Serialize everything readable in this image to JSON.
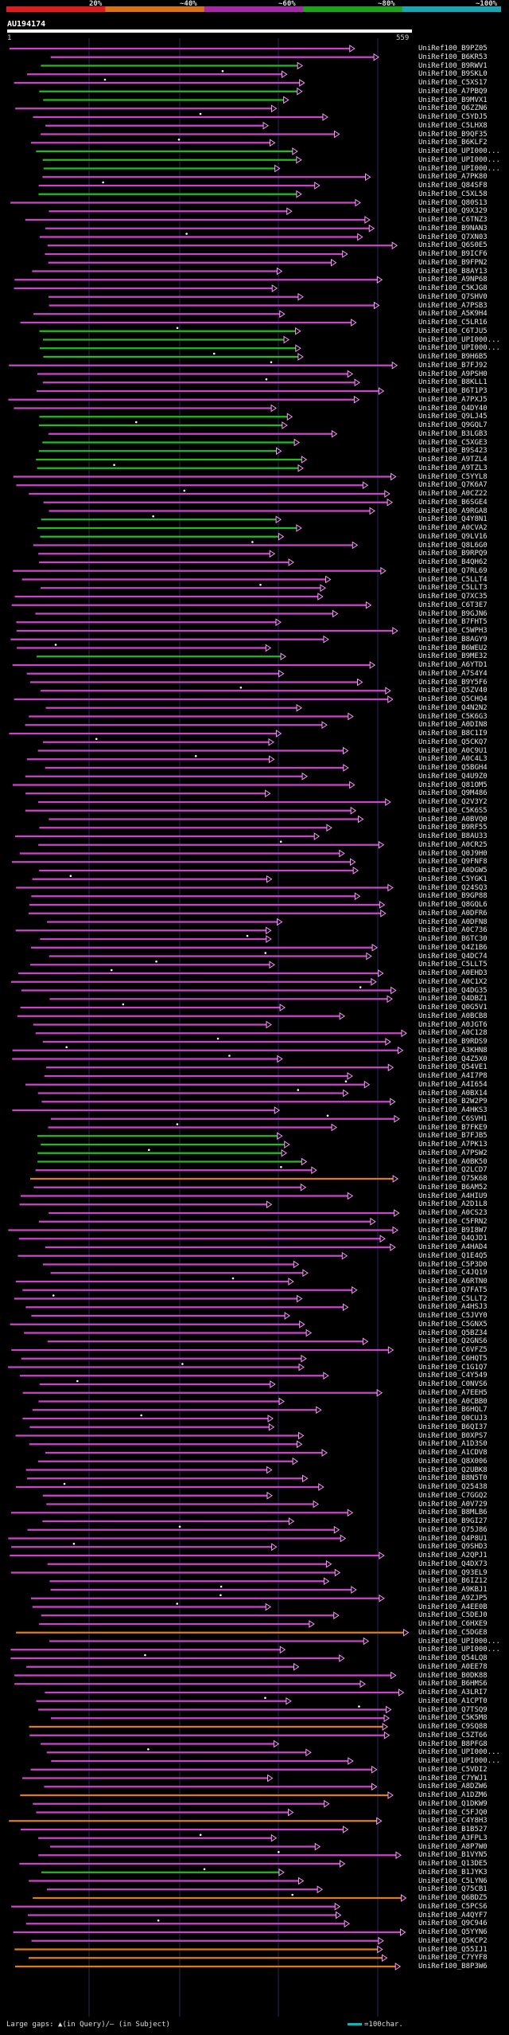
{
  "scale": {
    "labels": [
      "20%",
      "~40%",
      "~60%",
      "~80%",
      "~100%"
    ],
    "colors": [
      "#e01d1d",
      "#d9711a",
      "#a629a6",
      "#1ea31e",
      "#1ba5b3"
    ]
  },
  "query": {
    "id": "AU194174",
    "start": "1",
    "end": "559"
  },
  "colors": {
    "magenta": "#cc44cc",
    "green": "#22bb22",
    "orange": "#e07b1a",
    "arrow": "#ff99ff",
    "grid": "#27275a"
  },
  "hits": [
    "UniRef100_B9PZ05",
    "UniRef100_B6KR53",
    "UniRef100_B9RWV1",
    "UniRef100_B9SKL0",
    "UniRef100_C5XS17",
    "UniRef100_A7PBQ9",
    "UniRef100_B9MVX1",
    "UniRef100_Q6ZZN6",
    "UniRef100_C5YDJ5",
    "UniRef100_C5LHX8",
    "UniRef100_B9QF35",
    "UniRef100_B6KLF2",
    "UniRef100_UPI000...",
    "UniRef100_UPI000...",
    "UniRef100_UPI000...",
    "UniRef100_A7PK80",
    "UniRef100_Q84SF8",
    "UniRef100_C5XL58",
    "UniRef100_Q80S13",
    "UniRef100_Q9X329",
    "UniRef100_C6TNZ3",
    "UniRef100_B9NAN3",
    "UniRef100_Q7XN03",
    "UniRef100_Q6S0E5",
    "UniRef100_B9ICF6",
    "UniRef100_B9FPN2",
    "UniRef100_B8AY13",
    "UniRef100_A9NP68",
    "UniRef100_C5KJG8",
    "UniRef100_Q7SHV0",
    "UniRef100_A7PSB3",
    "UniRef100_A5K9H4",
    "UniRef100_C5LR16",
    "UniRef100_C6TJU5",
    "UniRef100_UPI000...",
    "UniRef100_UPI000...",
    "UniRef100_B9H6B5",
    "UniRef100_B7FJ92",
    "UniRef100_A9PSH0",
    "UniRef100_B8KLL1",
    "UniRef100_B6T1P3",
    "UniRef100_A7PXJ5",
    "UniRef100_Q4DY40",
    "UniRef100_Q9LJ45",
    "UniRef100_Q9GQL7",
    "UniRef100_B3LGB3",
    "UniRef100_C5XGE3",
    "UniRef100_B9S423",
    "UniRef100_A9TZL4",
    "UniRef100_A9TZL3",
    "UniRef100_C5YYL8",
    "UniRef100_Q7K6A7",
    "UniRef100_A0CZ22",
    "UniRef100_B6SGE4",
    "UniRef100_A9RGA8",
    "UniRef100_Q4Y8N1",
    "UniRef100_A0CVA2",
    "UniRef100_Q9LV16",
    "UniRef100_Q8L6G0",
    "UniRef100_B9RPQ9",
    "UniRef100_B4QH62",
    "UniRef100_Q7RL69",
    "UniRef100_C5LLT4",
    "UniRef100_C5LLT3",
    "UniRef100_Q7XC35",
    "UniRef100_C6T3E7",
    "UniRef100_B9GJN6",
    "UniRef100_B7FHT5",
    "UniRef100_C5WPH3",
    "UniRef100_B8AGY9",
    "UniRef100_B6WEU2",
    "UniRef100_B9ME32",
    "UniRef100_A6YTD1",
    "UniRef100_A7S4Y4",
    "UniRef100_B9Y5F6",
    "UniRef100_Q5ZV40",
    "UniRef100_Q5CHQ4",
    "UniRef100_Q4N2N2",
    "UniRef100_C5K6G3",
    "UniRef100_A0DIN8",
    "UniRef100_B8C1I9",
    "UniRef100_Q5CKQ7",
    "UniRef100_A0C9U1",
    "UniRef100_A0C4L3",
    "UniRef100_Q5BGH4",
    "UniRef100_Q4U9Z0",
    "UniRef100_Q81OM5",
    "UniRef100_Q9M486",
    "UniRef100_Q2V3Y2",
    "UniRef100_C5K6S5",
    "UniRef100_A0BVQ0",
    "UniRef100_B9RF55",
    "UniRef100_B8AU33",
    "UniRef100_A0CR25",
    "UniRef100_Q0J9H0",
    "UniRef100_Q9FNF8",
    "UniRef100_A0DGW5",
    "UniRef100_C5YGK1",
    "UniRef100_Q24SQ3",
    "UniRef100_B9GP88",
    "UniRef100_Q8GQL6",
    "UniRef100_A0DFR6",
    "UniRef100_A0DFN8",
    "UniRef100_A0C736",
    "UniRef100_B6TC30",
    "UniRef100_Q4Z1B6",
    "UniRef100_Q4DC74",
    "UniRef100_C5LLT5",
    "UniRef100_A0EHD3",
    "UniRef100_A0C1X2",
    "UniRef100_Q4DG35",
    "UniRef100_Q4DBZ1",
    "UniRef100_Q0G5V1",
    "UniRef100_A0BCB8",
    "UniRef100_A0JGT6",
    "UniRef100_A0C128",
    "UniRef100_B9RDS9",
    "UniRef100_A3KHN8",
    "UniRef100_Q4Z5X0",
    "UniRef100_Q54VE1",
    "UniRef100_A4I7P8",
    "UniRef100_A4I654",
    "UniRef100_A0BX14",
    "UniRef100_B2W2P9",
    "UniRef100_A4HKS3",
    "UniRef100_C6SVH1",
    "UniRef100_B7FKE9",
    "UniRef100_B7FJB5",
    "UniRef100_A7PK13",
    "UniRef100_A7PSW2",
    "UniRef100_A0BK50",
    "UniRef100_Q2LCD7",
    "UniRef100_Q75K68",
    "UniRef100_B6AM52",
    "UniRef100_A4HIU9",
    "UniRef100_A2D1L8",
    "UniRef100_A0CS23",
    "UniRef100_C5FRN2",
    "UniRef100_B9I8W7",
    "UniRef100_Q4QJD1",
    "UniRef100_A4HAD4",
    "UniRef100_Q1E4Q5",
    "UniRef100_C5P3D0",
    "UniRef100_C4JQ19",
    "UniRef100_A6RTN0",
    "UniRef100_Q7FAT5",
    "UniRef100_C5LLT2",
    "UniRef100_A4HSJ3",
    "UniRef100_C5JVY0",
    "UniRef100_C5GNX5",
    "UniRef100_Q5BZ34",
    "UniRef100_Q2GNS6",
    "UniRef100_C6VFZ5",
    "UniRef100_C6HQT5",
    "UniRef100_C1G1Q7",
    "UniRef100_C4Y549",
    "UniRef100_C0NVS6",
    "UniRef100_A7EEH5",
    "UniRef100_A0CBB0",
    "UniRef100_B6HQL7",
    "UniRef100_Q0CUJ3",
    "UniRef100_B6QI37",
    "UniRef100_B0XPS7",
    "UniRef100_A1D3S0",
    "UniRef100_A1CDV8",
    "UniRef100_Q8X006",
    "UniRef100_Q2UBK8",
    "UniRef100_B8N5T0",
    "UniRef100_Q25438",
    "UniRef100_C7GGQ2",
    "UniRef100_A0V729",
    "UniRef100_B8MLB6",
    "UniRef100_B9GI27",
    "UniRef100_Q75J86",
    "UniRef100_Q4P8U1",
    "UniRef100_Q9SHD3",
    "UniRef100_A2QPJ1",
    "UniRef100_Q4DX73",
    "UniRef100_Q93EL9",
    "UniRef100_B6IZ12",
    "UniRef100_A9KBJ1",
    "UniRef100_A9ZJP5",
    "UniRef100_A4EE0B",
    "UniRef100_C5DEJ0",
    "UniRef100_C6HXE9",
    "UniRef100_C5DGE8",
    "UniRef100_UPI000...",
    "UniRef100_UPI000...",
    "UniRef100_Q54LQ8",
    "UniRef100_A0EE78",
    "UniRef100_B0DK88",
    "UniRef100_B6HMS6",
    "UniRef100_A3LRI7",
    "UniRef100_A1CPT0",
    "UniRef100_Q7TSQ9",
    "UniRef100_C5K5M8",
    "UniRef100_C9SQ88",
    "UniRef100_C5ZT66",
    "UniRef100_B8PFG8",
    "UniRef100_UPI000...",
    "UniRef100_UPI000...",
    "UniRef100_C5VDI2",
    "UniRef100_C7YWJ1",
    "UniRef100_A8DZW6",
    "UniRef100_A1DZM6",
    "UniRef100_Q1DKW9",
    "UniRef100_C5FJQ0",
    "UniRef100_C4Y8H3",
    "UniRef100_B1B527",
    "UniRef100_A3FPL3",
    "UniRef100_A8P7W0",
    "UniRef100_B1VYN5",
    "UniRef100_Q13DE5",
    "UniRef100_B1JYK3",
    "UniRef100_C5LYN6",
    "UniRef100_Q75CB1",
    "UniRef100_Q6BDZ5",
    "UniRef100_C5PCS6",
    "UniRef100_A4QYF7",
    "UniRef100_Q9C946",
    "UniRef100_Q5YYN6",
    "UniRef100_Q5KCP2",
    "UniRef100_Q55IJ1",
    "UniRef100_C7YYF8",
    "UniRef100_B8P3W6"
  ],
  "footer": {
    "text": "Large gaps: ▲(in Query)/– (in Subject)"
  },
  "legend": {
    "text": "=100char."
  }
}
